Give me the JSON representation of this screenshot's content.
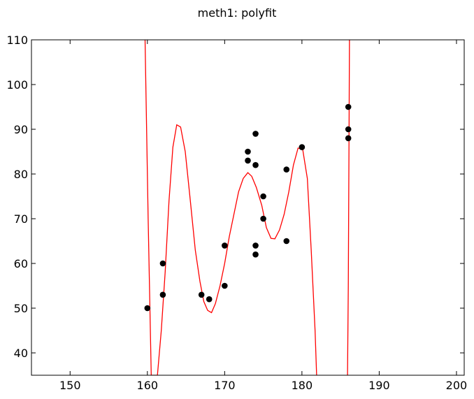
{
  "chart_data": {
    "type": "scatter",
    "title": "meth1: polyfit",
    "xlabel": "",
    "ylabel": "",
    "xlim": [
      145,
      201
    ],
    "ylim": [
      35,
      110
    ],
    "xticks": [
      150,
      160,
      170,
      180,
      190,
      200
    ],
    "yticks": [
      40,
      50,
      60,
      70,
      80,
      90,
      100,
      110
    ],
    "grid": false,
    "legend": "none",
    "series": [
      {
        "kind": "scatter",
        "color": "#000000",
        "points": [
          [
            160,
            50
          ],
          [
            162,
            53
          ],
          [
            162,
            60
          ],
          [
            167,
            53
          ],
          [
            168,
            52
          ],
          [
            170,
            55
          ],
          [
            170,
            64
          ],
          [
            173,
            83
          ],
          [
            173,
            85
          ],
          [
            174,
            89
          ],
          [
            174,
            82
          ],
          [
            174,
            64
          ],
          [
            174,
            62
          ],
          [
            175,
            75
          ],
          [
            175,
            70
          ],
          [
            178,
            81
          ],
          [
            178,
            65
          ],
          [
            180,
            86
          ],
          [
            186,
            95
          ],
          [
            186,
            90
          ],
          [
            186,
            88
          ]
        ]
      },
      {
        "kind": "line",
        "color": "#ff0000",
        "points": [
          [
            159.7,
            110
          ],
          [
            160.1,
            70
          ],
          [
            160.5,
            35
          ],
          [
            161.3,
            35
          ],
          [
            161.8,
            45
          ],
          [
            162.3,
            58
          ],
          [
            162.8,
            74
          ],
          [
            163.3,
            86
          ],
          [
            163.8,
            91
          ],
          [
            164.3,
            90.5
          ],
          [
            164.9,
            85
          ],
          [
            165.5,
            75
          ],
          [
            166.2,
            63
          ],
          [
            166.8,
            56
          ],
          [
            167.3,
            51.5
          ],
          [
            167.8,
            49.5
          ],
          [
            168.3,
            49
          ],
          [
            168.8,
            51
          ],
          [
            169.4,
            55
          ],
          [
            170.0,
            60
          ],
          [
            170.6,
            66
          ],
          [
            171.2,
            71
          ],
          [
            171.8,
            76
          ],
          [
            172.4,
            79
          ],
          [
            173.0,
            80.3
          ],
          [
            173.5,
            79.5
          ],
          [
            174.1,
            77
          ],
          [
            174.8,
            73
          ],
          [
            175.4,
            68
          ],
          [
            176.0,
            65.6
          ],
          [
            176.5,
            65.5
          ],
          [
            177.1,
            67.5
          ],
          [
            177.7,
            71
          ],
          [
            178.3,
            76
          ],
          [
            178.9,
            82
          ],
          [
            179.5,
            85.8
          ],
          [
            180.1,
            85.5
          ],
          [
            180.7,
            79
          ],
          [
            181.2,
            63
          ],
          [
            181.7,
            45
          ],
          [
            181.9,
            35
          ]
        ]
      },
      {
        "kind": "line",
        "color": "#ff0000",
        "points": [
          [
            185.9,
            35
          ],
          [
            186.0,
            55
          ],
          [
            186.1,
            90
          ],
          [
            186.15,
            110
          ]
        ]
      }
    ]
  }
}
